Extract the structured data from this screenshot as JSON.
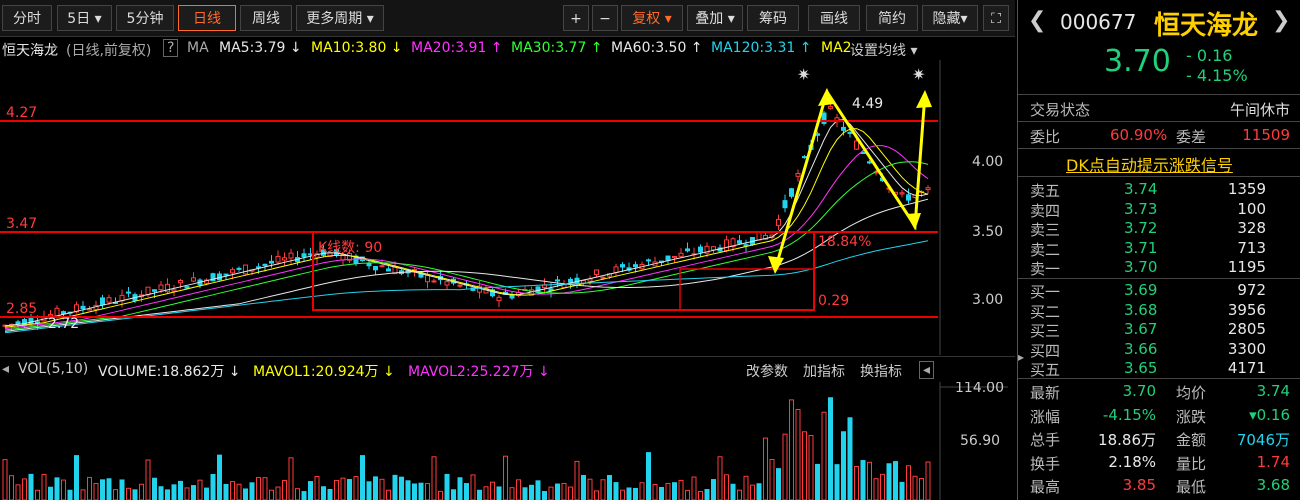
{
  "toolbar": {
    "tabs": [
      "分时",
      "5日",
      "5分钟",
      "日线",
      "周线",
      "更多周期"
    ],
    "active_tab": "日线",
    "right_buttons": [
      "复权",
      "叠加",
      "筹码",
      "画线",
      "简约",
      "隐藏"
    ],
    "plus": "+",
    "minus": "−"
  },
  "legend": {
    "stock_name": "恒天海龙",
    "mode": "(日线,前复权)",
    "question": "?",
    "ma_label": "MA",
    "ma5": "MA5:3.79",
    "ma10": "MA10:3.80",
    "ma20": "MA20:3.91",
    "ma30": "MA30:3.77",
    "ma60": "MA60:3.50",
    "ma120": "MA120:3.31",
    "ma_more": "MA2",
    "settings": "设置均线"
  },
  "chart": {
    "price_levels": [
      "4.27",
      "3.47",
      "2.85"
    ],
    "axis_ticks": [
      "4.00",
      "3.50",
      "3.00"
    ],
    "annotations": {
      "high": "4.49",
      "low": "2.72",
      "kcount": "K线数: 90",
      "pct1": "18.84%",
      "pct2": "0.29"
    },
    "colors": {
      "up": "#ff3b3b",
      "down": "#22d3ee",
      "ma5": "#e8e8e8",
      "ma10": "#ffff00",
      "ma20": "#ff33ff",
      "ma30": "#33ff33",
      "ma60": "#e8e8e8",
      "ma120": "#22d3ee"
    }
  },
  "volume": {
    "label": "VOL(5,10)",
    "volume": "VOLUME:18.862万",
    "mavol1": "MAVOL1:20.924万",
    "mavol2": "MAVOL2:25.227万",
    "buttons": [
      "改参数",
      "加指标",
      "换指标"
    ],
    "ticks": [
      "114.00",
      "56.90"
    ]
  },
  "panel": {
    "code": "000677",
    "name": "恒天海龙",
    "price": "3.70",
    "change": "- 0.16",
    "change_pct": "- 4.15%",
    "status_label": "交易状态",
    "status_value": "午间休市",
    "weibi_label": "委比",
    "weibi_value": "60.90%",
    "weicha_label": "委差",
    "weicha_value": "11509",
    "dk_link": "DK点自动提示涨跌信号",
    "asks": [
      {
        "label": "卖五",
        "price": "3.74",
        "vol": "1359"
      },
      {
        "label": "卖四",
        "price": "3.73",
        "vol": "100"
      },
      {
        "label": "卖三",
        "price": "3.72",
        "vol": "328"
      },
      {
        "label": "卖二",
        "price": "3.71",
        "vol": "713"
      },
      {
        "label": "卖一",
        "price": "3.70",
        "vol": "1195"
      }
    ],
    "bids": [
      {
        "label": "买一",
        "price": "3.69",
        "vol": "972"
      },
      {
        "label": "买二",
        "price": "3.68",
        "vol": "3956"
      },
      {
        "label": "买三",
        "price": "3.67",
        "vol": "2805"
      },
      {
        "label": "买四",
        "price": "3.66",
        "vol": "3300"
      },
      {
        "label": "买五",
        "price": "3.65",
        "vol": "4171"
      }
    ],
    "stats": [
      {
        "l1": "最新",
        "v1": "3.70",
        "l2": "均价",
        "v2": "3.74"
      },
      {
        "l1": "涨幅",
        "v1": "-4.15%",
        "l2": "涨跌",
        "v2": "▾0.16"
      },
      {
        "l1": "总手",
        "v1": "18.86万",
        "l2": "金额",
        "v2": "7046万"
      },
      {
        "l1": "换手",
        "v1": "2.18%",
        "l2": "量比",
        "v2": "1.74"
      },
      {
        "l1": "最高",
        "v1": "3.85",
        "l2": "最低",
        "v2": "3.68"
      }
    ]
  }
}
